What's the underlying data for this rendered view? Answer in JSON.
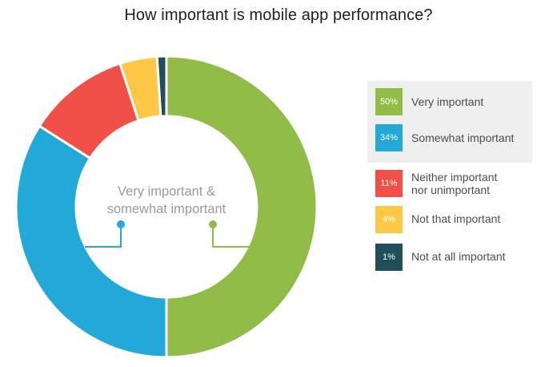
{
  "title": "How important is mobile app performance?",
  "center_label": {
    "line1": "Very important &",
    "line2": "somewhat important"
  },
  "colors": {
    "very_important": "#92bc48",
    "somewhat_important": "#23a9d8",
    "neither": "#f15048",
    "not_that": "#fcc846",
    "not_at_all": "#1f4e5c"
  },
  "chart_data": {
    "type": "pie",
    "variant": "donut",
    "title": "How important is mobile app performance?",
    "legend_position": "right",
    "slices": [
      {
        "label": "Very important",
        "value": 50,
        "value_label": "50%",
        "color": "#92bc48"
      },
      {
        "label": "Somewhat important",
        "value": 34,
        "value_label": "34%",
        "color": "#23a9d8"
      },
      {
        "label": "Neither important nor unimportant",
        "value": 11,
        "value_label": "11%",
        "color": "#f15048"
      },
      {
        "label": "Not that important",
        "value": 4,
        "value_label": "4%",
        "color": "#fcc846"
      },
      {
        "label": "Not at all important",
        "value": 1,
        "value_label": "1%",
        "color": "#1f4e5c"
      }
    ],
    "annotation": "Very important & somewhat important"
  }
}
